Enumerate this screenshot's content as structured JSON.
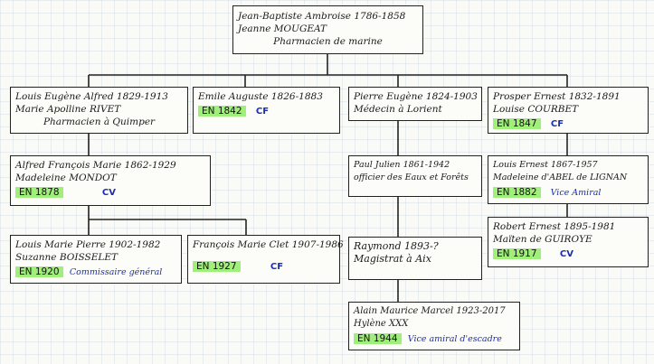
{
  "root": {
    "lines": [
      "Jean-Baptiste Ambroise 1786-1858",
      "Jeanne MOUGEAT",
      "Pharmacien de marine"
    ]
  },
  "gen1": [
    {
      "lines": [
        "Louis Eugène Alfred 1829-1913",
        "Marie Apolline RIVET",
        "Pharmacien à Quimper"
      ],
      "badge": "",
      "note": ""
    },
    {
      "lines": [
        "Emile Auguste 1826-1883"
      ],
      "badge": "EN 1842",
      "note": "CF"
    },
    {
      "lines": [
        "Pierre Eugène 1824-1903",
        "Médecin à Lorient"
      ],
      "badge": "",
      "note": ""
    },
    {
      "lines": [
        "Prosper Ernest 1832-1891",
        "Louise COURBET"
      ],
      "badge": "EN 1847",
      "note": "CF"
    }
  ],
  "gen2": [
    {
      "lines": [
        "Alfred François Marie 1862-1929",
        "Madeleine MONDOT"
      ],
      "badge": "EN 1878",
      "note": "CV"
    },
    {
      "lines": [
        "Paul Julien 1861-1942",
        "officier des Eaux et Forêts"
      ],
      "badge": "",
      "note": ""
    },
    {
      "lines": [
        "Louis Ernest 1867-1957",
        "Madeleine d'ABEL de LIGNAN"
      ],
      "badge": "EN 1882",
      "note": "Vice Amiral"
    }
  ],
  "gen3": [
    {
      "lines": [
        "Louis Marie Pierre 1902-1982",
        "Suzanne BOISSELET"
      ],
      "badge": "EN 1920",
      "note": "Commissaire général"
    },
    {
      "lines": [
        "François Marie Clet 1907-1986"
      ],
      "badge": "EN 1927",
      "note": "CF"
    },
    {
      "lines": [
        "Raymond 1893-?",
        "Magistrat à Aix"
      ],
      "badge": "",
      "note": ""
    },
    {
      "lines": [
        "Robert Ernest 1895-1981",
        "Maïten de GUIROYE"
      ],
      "badge": "EN 1917",
      "note": "CV"
    }
  ],
  "gen4": [
    {
      "lines": [
        "Alain Maurice Marcel 1923-2017",
        "Hylène XXX"
      ],
      "badge": "EN 1944",
      "note": "Vice amiral d'escadre"
    }
  ]
}
